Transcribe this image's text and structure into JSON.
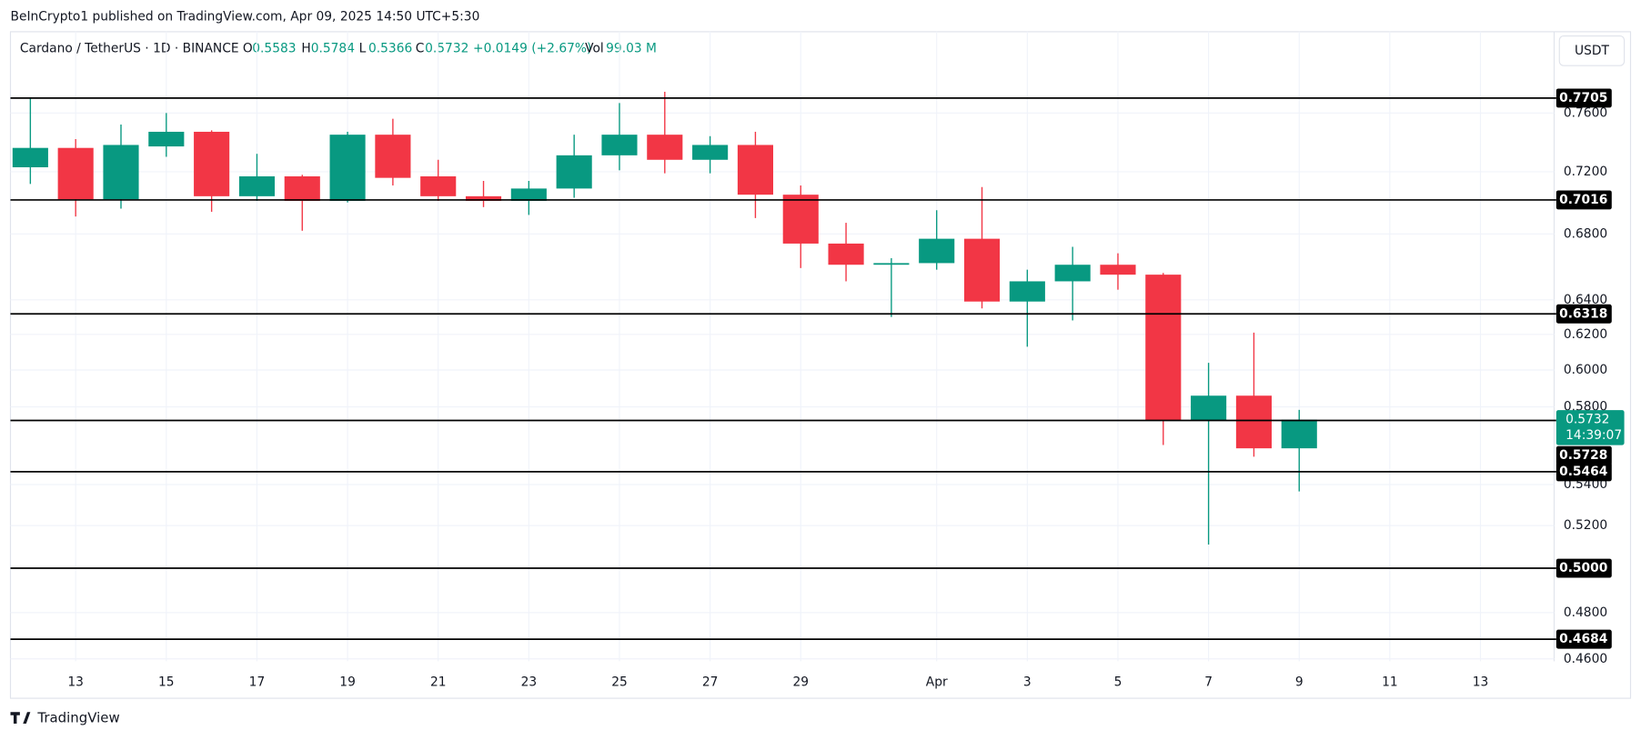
{
  "header": "BeInCrypto1 published on TradingView.com, Apr 09, 2025 14:50 UTC+5:30",
  "currency_button": "USDT",
  "footer_logo": "TradingView",
  "chart_data": {
    "type": "candlestick",
    "log": true,
    "grid": true,
    "symbol": "Cardano / TetherUS · 1D · BINANCE",
    "ohlc_labels": [
      "O",
      "H",
      "L",
      "C"
    ],
    "ohlc": [
      0.5583,
      0.5784,
      0.5366,
      0.5732
    ],
    "change": "+0.0149 (+2.67%)",
    "volume_label": "Vol",
    "volume": "99.03 M",
    "up_color": "#089981",
    "down_color": "#f23645",
    "categories": [
      null,
      "13",
      null,
      "15",
      null,
      "17",
      null,
      "19",
      null,
      "21",
      null,
      "23",
      null,
      "25",
      null,
      "27",
      null,
      "29",
      null,
      null,
      "Apr",
      null,
      "3",
      null,
      "5",
      null,
      "7",
      null,
      "9",
      null,
      "11",
      null,
      "13",
      null
    ],
    "series": {
      "open": [
        0.723,
        0.736,
        0.702,
        0.737,
        0.747,
        0.704,
        0.717,
        0.701,
        0.745,
        0.717,
        0.704,
        0.701,
        0.709,
        0.731,
        0.745,
        0.728,
        0.738,
        0.705,
        0.674,
        0.661,
        0.662,
        0.677,
        0.639,
        0.651,
        0.661,
        0.655,
        0.573,
        0.586,
        0.5583,
        null,
        null,
        null,
        null,
        null
      ],
      "high": [
        0.771,
        0.742,
        0.752,
        0.76,
        0.748,
        0.732,
        0.718,
        0.747,
        0.756,
        0.728,
        0.714,
        0.714,
        0.745,
        0.767,
        0.775,
        0.744,
        0.747,
        0.711,
        0.687,
        0.665,
        0.695,
        0.71,
        0.658,
        0.672,
        0.668,
        0.656,
        0.604,
        0.621,
        0.5784,
        null,
        null,
        null,
        null,
        null
      ],
      "low": [
        0.712,
        0.691,
        0.696,
        0.73,
        0.694,
        0.701,
        0.682,
        0.7,
        0.711,
        0.701,
        0.697,
        0.692,
        0.703,
        0.721,
        0.719,
        0.719,
        0.69,
        0.659,
        0.651,
        0.63,
        0.658,
        0.635,
        0.613,
        0.628,
        0.646,
        0.56,
        0.511,
        0.554,
        0.5366,
        null,
        null,
        null,
        null,
        null
      ],
      "close": [
        0.736,
        0.702,
        0.738,
        0.747,
        0.704,
        0.717,
        0.701,
        0.745,
        0.716,
        0.704,
        0.701,
        0.709,
        0.731,
        0.745,
        0.728,
        0.738,
        0.705,
        0.674,
        0.661,
        0.662,
        0.677,
        0.639,
        0.651,
        0.661,
        0.655,
        0.573,
        0.586,
        0.5583,
        0.5732,
        null,
        null,
        null,
        null,
        null
      ]
    },
    "ylim": [
      0.459,
      0.819
    ],
    "yticks": [
      {
        "value": 0.76,
        "label": "0.7600"
      },
      {
        "value": 0.72,
        "label": "0.7200"
      },
      {
        "value": 0.68,
        "label": "0.6800"
      },
      {
        "value": 0.64,
        "label": "0.6400"
      },
      {
        "value": 0.62,
        "label": "0.6200"
      },
      {
        "value": 0.6,
        "label": "0.6000"
      },
      {
        "value": 0.58,
        "label": "0.5800"
      },
      {
        "value": 0.54,
        "label": "0.5400"
      },
      {
        "value": 0.52,
        "label": "0.5200"
      },
      {
        "value": 0.48,
        "label": "0.4800"
      },
      {
        "value": 0.46,
        "label": "0.4600"
      }
    ],
    "levels": [
      0.7705,
      0.7016,
      0.6318,
      0.5728,
      0.5464,
      0.5,
      0.4684
    ],
    "level_labels": [
      "0.7705",
      "0.7016",
      "0.6318",
      "0.5728",
      "0.5464",
      "0.5000",
      "0.4684"
    ],
    "current_price": 0.5732,
    "countdown": "14:39:07"
  }
}
